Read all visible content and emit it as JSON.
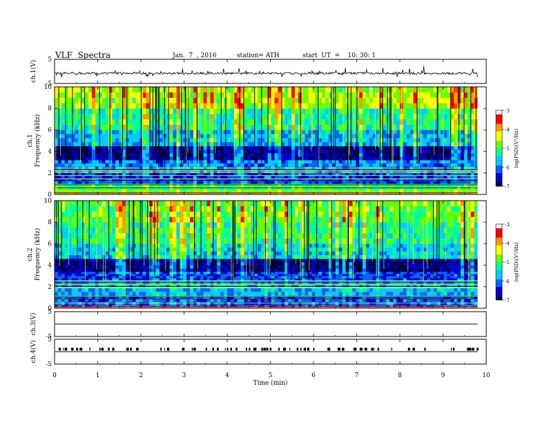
{
  "header": {
    "title": "VLF  Spectra",
    "date": "Jan.  7  , 2016",
    "station": "station= ATH",
    "start": "start  UT  =    10: 30: 1"
  },
  "colors": {
    "colormap": [
      "#000044",
      "#0000cc",
      "#0066ff",
      "#00ccff",
      "#00ff99",
      "#66ff00",
      "#ffff00",
      "#ff9900",
      "#ff0000",
      "#ffffff"
    ],
    "trace": "#000000"
  },
  "chart_data": [
    {
      "type": "line",
      "panel": "ch1-waveform",
      "ylabel": "ch.1(V)",
      "yticks": [
        "5",
        "-5"
      ],
      "ylim": [
        -5,
        5
      ],
      "x_range_min": [
        0,
        9.8
      ],
      "description_of_values": "noisy trace centered near -0.8 V with spikes up to about +2 V and down to about -3 V"
    },
    {
      "type": "heatmap",
      "panel": "ch1-spectrogram",
      "ylabel_ch": "ch.1",
      "ylabel": "Frequency  (kHz)",
      "yticks": [
        "0",
        "2",
        "4",
        "6",
        "8",
        "10"
      ],
      "ylim": [
        0,
        10
      ],
      "colorbar_label": "log(PSD)(V²/Hz)",
      "colorbar_ticks": [
        "-3",
        "-4",
        "-5",
        "-6",
        "-7"
      ],
      "colorbar_range": [
        -7,
        -3
      ],
      "bands_khz": [
        {
          "from": 0,
          "to": 1.0,
          "level": -5.0
        },
        {
          "from": 1.0,
          "to": 2.0,
          "level": -6.3
        },
        {
          "from": 2.0,
          "to": 3.2,
          "level": -6.0
        },
        {
          "from": 3.2,
          "to": 4.5,
          "level": -6.8
        },
        {
          "from": 4.5,
          "to": 6.0,
          "level": -5.8
        },
        {
          "from": 6.0,
          "to": 8.0,
          "level": -5.3
        },
        {
          "from": 8.0,
          "to": 10.0,
          "level": -4.6
        }
      ]
    },
    {
      "type": "heatmap",
      "panel": "ch2-spectrogram",
      "ylabel_ch": "ch.2",
      "ylabel": "Frequency  (kHz)",
      "yticks": [
        "0",
        "2",
        "4",
        "6",
        "8",
        "10"
      ],
      "ylim": [
        0,
        10
      ],
      "colorbar_label": "log(PSD)(V²/Hz)",
      "colorbar_ticks": [
        "-3",
        "-4",
        "-5",
        "-6",
        "-7"
      ],
      "colorbar_range": [
        -7,
        -3
      ],
      "bands_khz": [
        {
          "from": 0,
          "to": 1.2,
          "level": -6.2
        },
        {
          "from": 1.2,
          "to": 2.6,
          "level": -5.8
        },
        {
          "from": 2.6,
          "to": 3.4,
          "level": -6.3
        },
        {
          "from": 3.4,
          "to": 4.6,
          "level": -6.8
        },
        {
          "from": 4.6,
          "to": 6.0,
          "level": -5.6
        },
        {
          "from": 6.0,
          "to": 8.0,
          "level": -5.2
        },
        {
          "from": 8.0,
          "to": 10.0,
          "level": -4.9
        }
      ]
    },
    {
      "type": "line",
      "panel": "ch3-waveform",
      "ylabel": "ch.3(V)",
      "yticks": [
        "5",
        "-5"
      ],
      "ylim": [
        -5,
        5
      ],
      "flat_value": 0
    },
    {
      "type": "line",
      "panel": "ch4-waveform",
      "ylabel": "ch.4(V)",
      "yticks": [
        "5",
        "-5"
      ],
      "ylim": [
        -5,
        5
      ],
      "flat_value": 0,
      "pulse_level": 1
    }
  ],
  "xaxis": {
    "label": "Time  (min)",
    "ticks": [
      "0",
      "1",
      "2",
      "3",
      "4",
      "5",
      "6",
      "7",
      "8",
      "9",
      "10"
    ],
    "range": [
      0,
      10
    ],
    "data_end": 9.8
  }
}
